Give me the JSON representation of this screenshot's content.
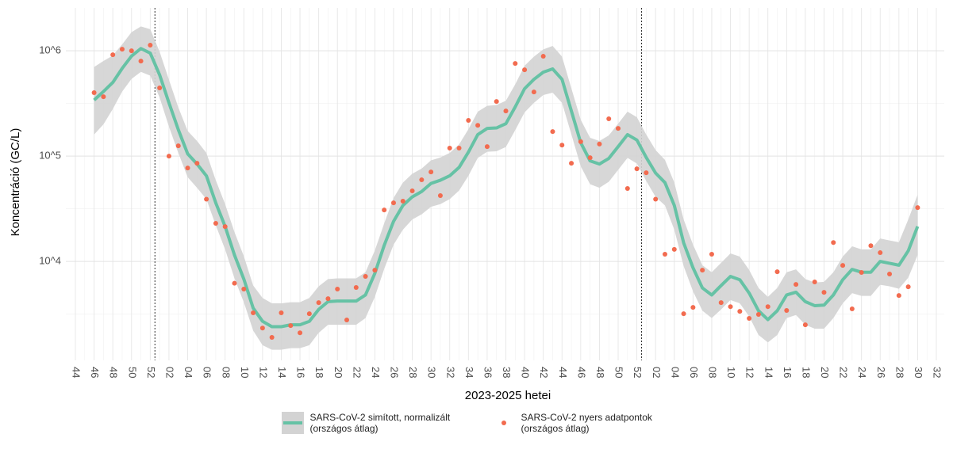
{
  "chart_data": {
    "type": "line",
    "y_label": "Koncentráció (GC/L)",
    "x_label": "2023-2025 hetei",
    "y_scale": "log",
    "grid": true,
    "legend": "bottom",
    "categories": [
      "44",
      null,
      "46",
      null,
      "48",
      null,
      "50",
      null,
      "52",
      null,
      "02",
      null,
      "04",
      null,
      "06",
      null,
      "08",
      null,
      "10",
      null,
      "12",
      null,
      "14",
      null,
      "16",
      null,
      "18",
      null,
      "20",
      null,
      "22",
      null,
      "24",
      null,
      "26",
      null,
      "28",
      null,
      "30",
      null,
      "32",
      null,
      "34",
      null,
      "36",
      null,
      "38",
      null,
      "40",
      null,
      "42",
      null,
      "44",
      null,
      "46",
      null,
      "48",
      null,
      "50",
      null,
      "52",
      null,
      "02",
      null,
      "04",
      null,
      "06",
      null,
      "08",
      null,
      "10",
      null,
      "12",
      null,
      "14",
      null,
      "16",
      null,
      "18",
      null,
      "20",
      null,
      "22",
      null,
      "24",
      null,
      "26",
      null,
      "28",
      null,
      "30",
      null,
      "32"
    ],
    "ylim": [
      1150,
      2550000
    ],
    "yticks": [
      {
        "value": 10000,
        "label": "10^4"
      },
      {
        "value": 100000,
        "label": "10^5"
      },
      {
        "value": 1000000,
        "label": "10^6"
      }
    ],
    "series": [
      {
        "name": "SARS-CoV-2 simított, normalizált (országos átlag)",
        "color": "#66c2a5",
        "band_color": "#d3d3d3",
        "style": "line",
        "values": [
          null,
          null,
          340000,
          410000,
          500000,
          680000,
          890000,
          1050000,
          950000,
          590000,
          320000,
          178000,
          105000,
          84000,
          65000,
          36000,
          21500,
          11500,
          6800,
          3600,
          2700,
          2400,
          2400,
          2500,
          2500,
          2700,
          3500,
          4150,
          4200,
          4200,
          4200,
          4800,
          7700,
          14200,
          24000,
          34000,
          41000,
          46000,
          55000,
          59000,
          65000,
          78000,
          109000,
          160000,
          183000,
          185000,
          203000,
          293000,
          436000,
          535000,
          626000,
          672000,
          535000,
          268000,
          134000,
          90000,
          84000,
          95000,
          123000,
          160000,
          142000,
          97000,
          69000,
          56000,
          34000,
          15000,
          8700,
          5600,
          4800,
          5900,
          7200,
          6700,
          5000,
          3400,
          2800,
          3400,
          4800,
          5100,
          4150,
          3800,
          3850,
          4800,
          6700,
          8400,
          7900,
          7900,
          10000,
          9600,
          9200,
          12600,
          21500,
          null,
          null
        ],
        "lower": [
          null,
          null,
          160000,
          200000,
          280000,
          410000,
          540000,
          630000,
          580000,
          360000,
          190000,
          107000,
          63000,
          50000,
          39000,
          22000,
          13000,
          6900,
          4100,
          2200,
          1600,
          1450,
          1450,
          1500,
          1500,
          1600,
          2100,
          2500,
          2500,
          2500,
          2500,
          2900,
          4600,
          8500,
          14400,
          20000,
          25000,
          28000,
          33000,
          35000,
          39000,
          47000,
          65000,
          96000,
          110000,
          111000,
          122000,
          176000,
          260000,
          320000,
          380000,
          400000,
          320000,
          161000,
          80000,
          54000,
          50000,
          57000,
          74000,
          96000,
          85000,
          58000,
          41000,
          34000,
          20000,
          9000,
          5200,
          3400,
          2900,
          3500,
          4300,
          4000,
          3000,
          2000,
          1700,
          2000,
          2900,
          3100,
          2500,
          2300,
          2300,
          2900,
          4000,
          5000,
          4700,
          4700,
          6000,
          5800,
          5500,
          7000,
          11500,
          null,
          null
        ],
        "upper": [
          null,
          null,
          700000,
          800000,
          900000,
          1150000,
          1500000,
          1700000,
          1600000,
          980000,
          530000,
          290000,
          173000,
          139000,
          107000,
          59000,
          35000,
          19000,
          11200,
          5900,
          4500,
          4000,
          4000,
          4100,
          4100,
          4500,
          5800,
          6800,
          6900,
          6900,
          6900,
          7900,
          12700,
          23000,
          40000,
          56000,
          68000,
          76000,
          91000,
          97000,
          107000,
          129000,
          180000,
          264000,
          300000,
          305000,
          335000,
          480000,
          720000,
          880000,
          1030000,
          1110000,
          880000,
          440000,
          221000,
          149000,
          139000,
          157000,
          203000,
          264000,
          234000,
          160000,
          114000,
          92000,
          56000,
          25000,
          14400,
          9200,
          7900,
          9700,
          11900,
          11100,
          8300,
          5600,
          4600,
          5600,
          7900,
          8400,
          6800,
          6300,
          6400,
          7900,
          11100,
          13900,
          13000,
          13000,
          16500,
          15800,
          15200,
          25000,
          43000,
          null,
          null
        ]
      },
      {
        "name": "SARS-CoV-2 nyers adatpontok (országos átlag)",
        "color": "#f26b4f",
        "style": "points",
        "values": [
          null,
          null,
          400000,
          366000,
          917000,
          1035000,
          1000000,
          798000,
          1130000,
          444000,
          100000,
          125000,
          77000,
          85500,
          39000,
          23000,
          21400,
          6200,
          5460,
          3250,
          2330,
          1900,
          3250,
          2460,
          2100,
          3190,
          4060,
          4430,
          5460,
          2780,
          5650,
          7200,
          8260,
          30800,
          36000,
          37300,
          46700,
          59500,
          70700,
          42100,
          119000,
          119000,
          218000,
          196000,
          123000,
          330000,
          268000,
          758000,
          660000,
          406000,
          886000,
          171000,
          127000,
          85500,
          137000,
          96600,
          130000,
          226000,
          183000,
          49200,
          75800,
          69500,
          39000,
          11700,
          13000,
          3190,
          3660,
          8260,
          11700,
          4060,
          3720,
          3360,
          2880,
          3140,
          3720,
          7980,
          3420,
          6050,
          2500,
          6380,
          5090,
          15100,
          9160,
          3540,
          7850,
          14100,
          12100,
          7590,
          4750,
          5740,
          32400,
          null,
          null
        ]
      }
    ]
  }
}
